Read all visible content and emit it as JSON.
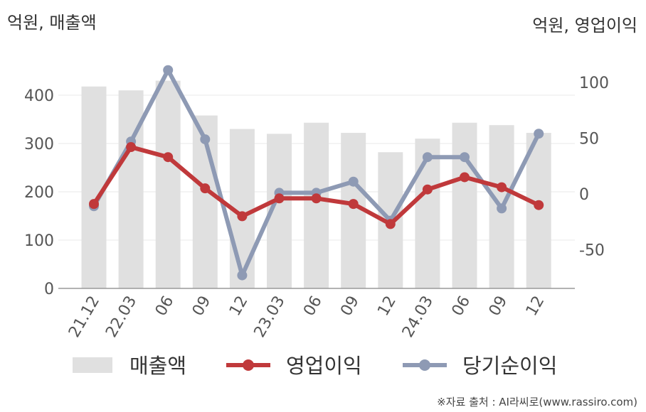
{
  "left_unit": "억원, 매출액",
  "right_unit": "억원, 영업이익",
  "source": "※자료 출처 : AI라씨로(www.rassiro.com)",
  "colors": {
    "revenue": "#e0e0e0",
    "operating_profit": "#c0393b",
    "net_income": "#8e9ab4",
    "grid": "#e8e8e8",
    "axis": "#999999"
  },
  "chart_data": {
    "type": "bar+line",
    "categories": [
      "21.12",
      "22.03",
      "06",
      "09",
      "12",
      "23.03",
      "06",
      "09",
      "12",
      "24.03",
      "06",
      "09",
      "12"
    ],
    "y_left": {
      "ticks": [
        0,
        100,
        200,
        300,
        400
      ],
      "range": [
        0,
        475
      ]
    },
    "y_right": {
      "ticks": [
        -50,
        0,
        50,
        100
      ],
      "range": [
        -85,
        145
      ]
    },
    "series": [
      {
        "name": "매출액",
        "type": "bar",
        "axis": "left",
        "values": [
          418,
          410,
          430,
          358,
          330,
          320,
          343,
          322,
          282,
          310,
          343,
          338,
          322
        ]
      },
      {
        "name": "영업이익",
        "type": "line",
        "axis": "right",
        "values": [
          -9,
          42,
          33,
          5,
          -20,
          -4,
          -4,
          -9,
          -27,
          4,
          15,
          6,
          -10
        ]
      },
      {
        "name": "당기순이익",
        "type": "line",
        "axis": "right",
        "values": [
          -11,
          47,
          111,
          49,
          -73,
          1,
          1,
          11,
          -24,
          33,
          33,
          -13,
          54
        ]
      }
    ],
    "legend": [
      "매출액",
      "영업이익",
      "당기순이익"
    ],
    "legend_position": "bottom",
    "grid": true
  }
}
